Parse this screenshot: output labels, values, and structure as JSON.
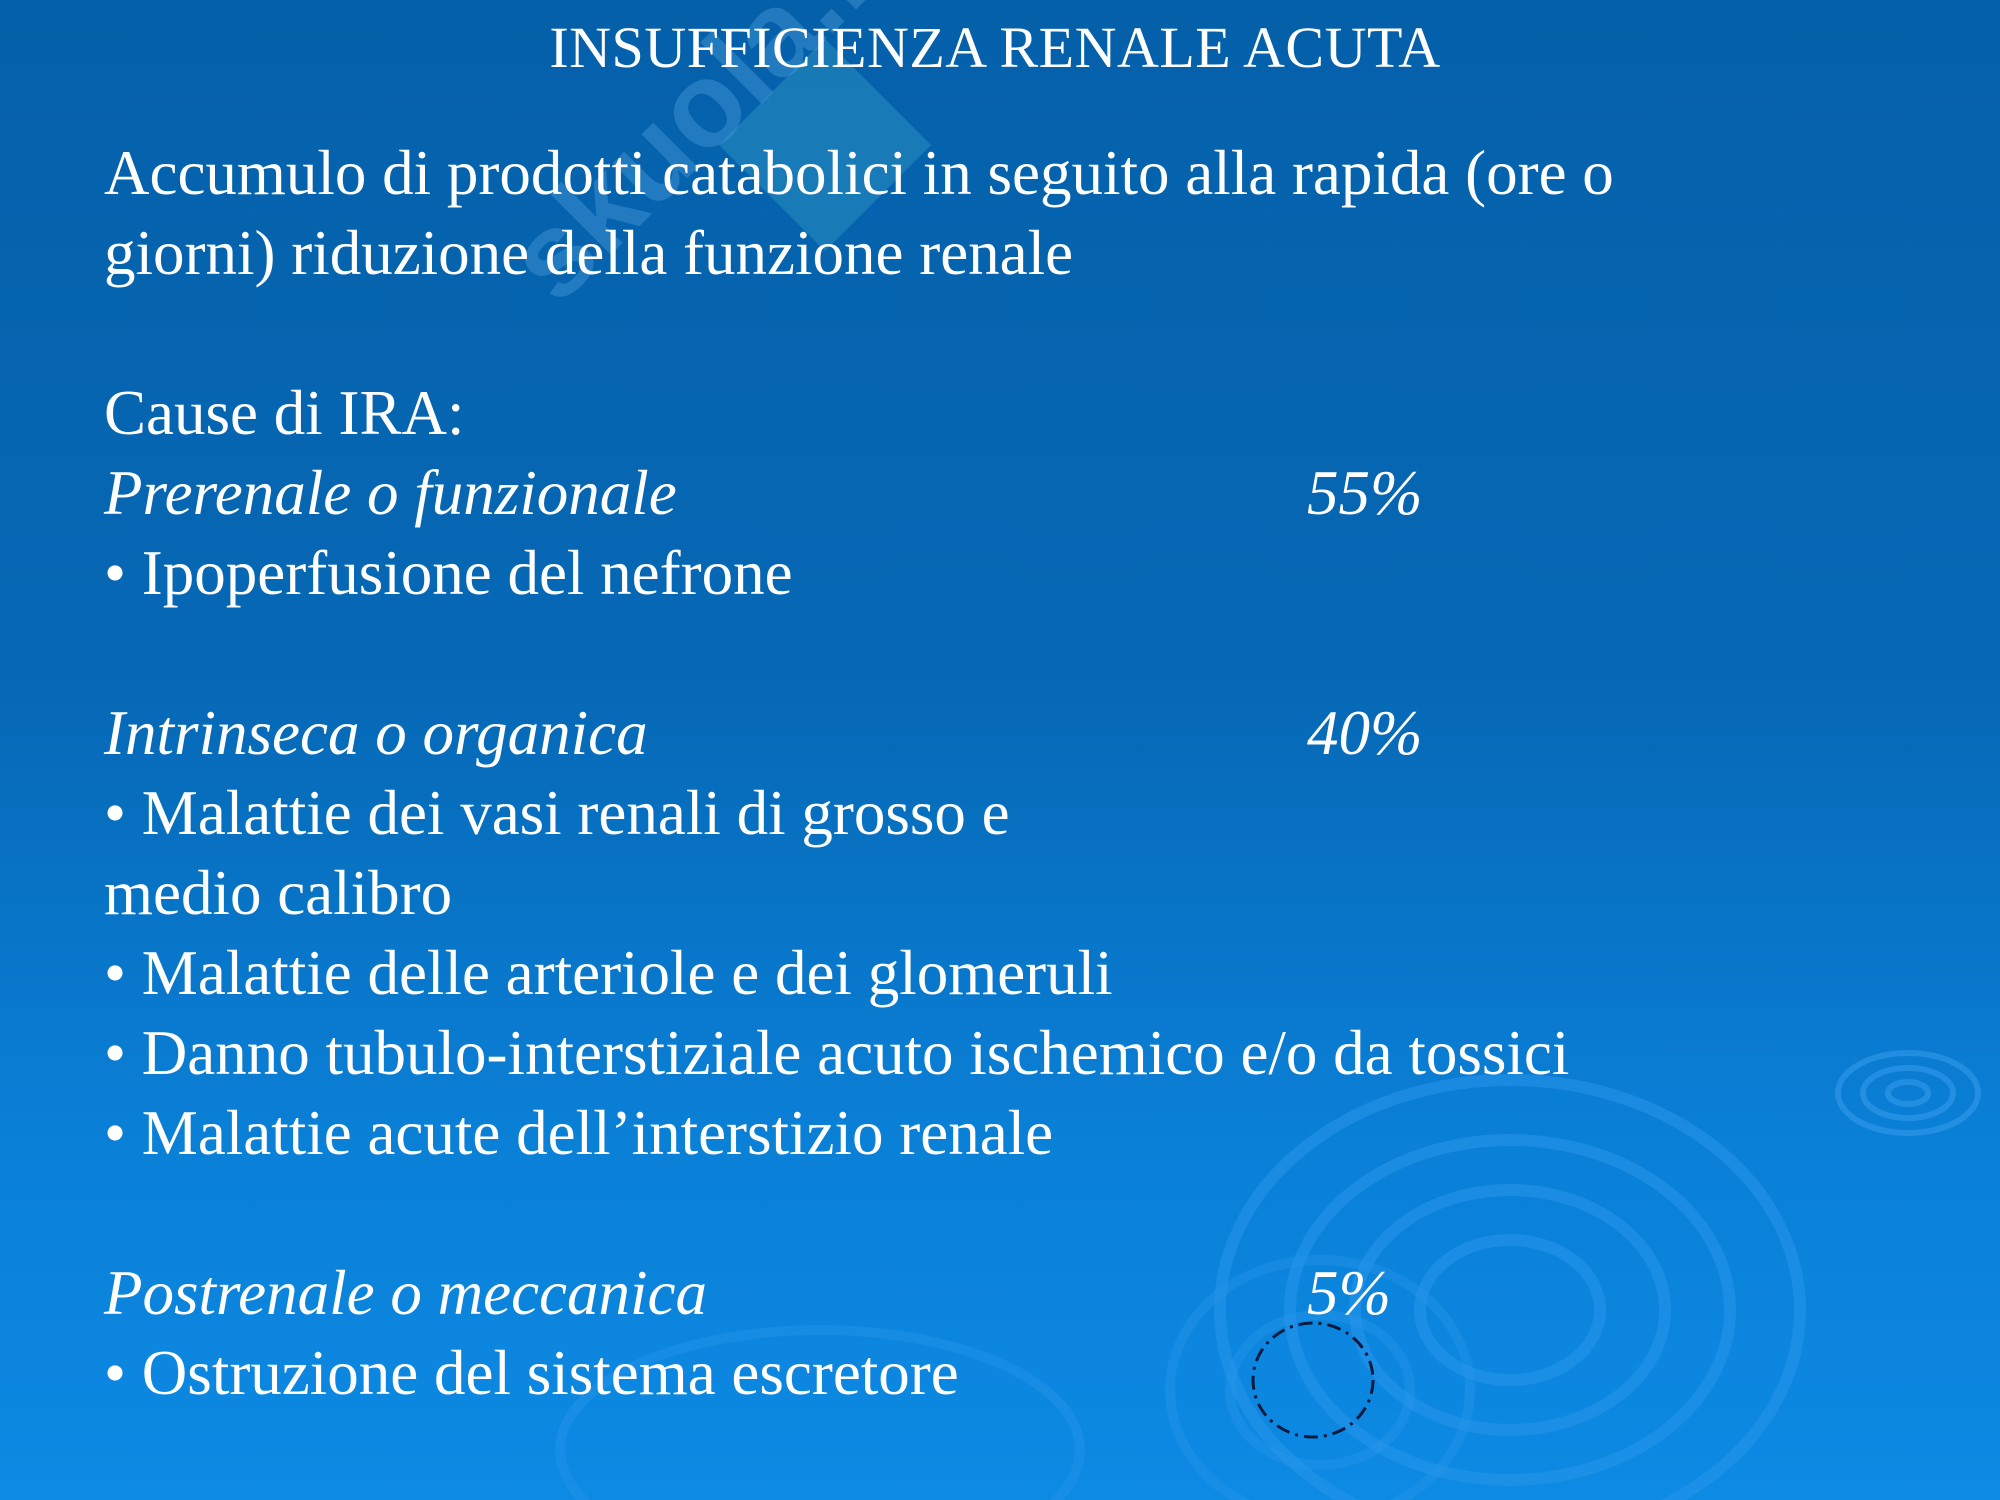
{
  "slide": {
    "title": "INSUFFICIENZA RENALE ACUTA",
    "intro_line1": "Accumulo di prodotti catabolici in seguito alla rapida (ore o",
    "intro_line2": "giorni) riduzione della funzione renale",
    "causes_heading": "Cause di IRA:",
    "categories": [
      {
        "name": "Prerenale o funzionale",
        "percent": "55%",
        "items": [
          "• Ipoperfusione del nefrone"
        ]
      },
      {
        "name": "Intrinseca o organica",
        "percent": "40%",
        "items": [
          "• Malattie dei vasi renali di grosso e",
          "medio calibro",
          "• Malattie delle arteriole e dei glomeruli",
          "• Danno tubulo-interstiziale acuto ischemico e/o da tossici",
          "• Malattie acute dell’interstizio renale"
        ]
      },
      {
        "name": "Postrenale o meccanica",
        "percent": "5%",
        "items": [
          "• Ostruzione del sistema escretore"
        ]
      }
    ]
  },
  "watermark": {
    "text": "skuola.net"
  },
  "colors": {
    "background_top": "#0560aa",
    "background_bottom": "#0d8ae4",
    "text": "#ffffff"
  }
}
